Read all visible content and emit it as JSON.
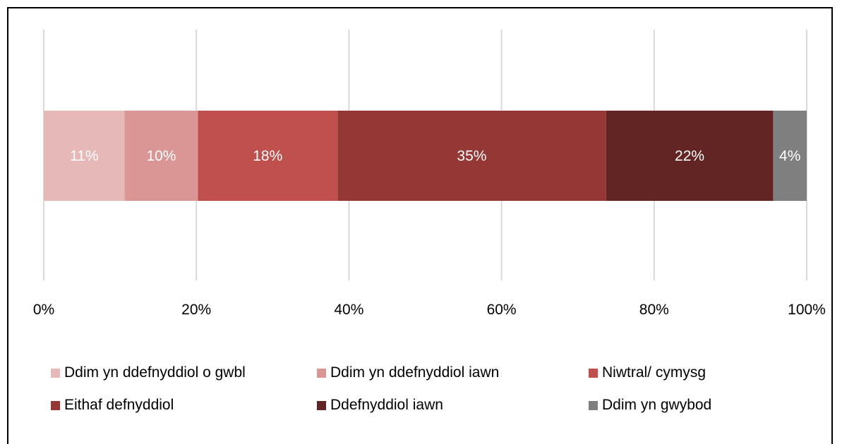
{
  "chart_data": {
    "type": "bar",
    "orientation": "horizontal",
    "stacked": true,
    "title": "",
    "xlabel": "",
    "ylabel": "",
    "xlim": [
      0,
      100
    ],
    "x_ticks": [
      "0%",
      "20%",
      "40%",
      "60%",
      "80%",
      "100%"
    ],
    "grid": true,
    "legend_position": "bottom",
    "series": [
      {
        "name": "Ddim yn ddefnyddiol o gwbl",
        "value": 10.6,
        "label": "11%",
        "color": "#E6B9B8"
      },
      {
        "name": "Ddim yn ddefnyddiol iawn",
        "value": 9.6,
        "label": "10%",
        "color": "#D99694"
      },
      {
        "name": "Niwtral/ cymysg",
        "value": 18.3,
        "label": "18%",
        "color": "#C0504D"
      },
      {
        "name": "Eithaf defnyddiol",
        "value": 35.2,
        "label": "35%",
        "color": "#953735"
      },
      {
        "name": "Ddefnyddiol iawn",
        "value": 21.9,
        "label": "22%",
        "color": "#632523"
      },
      {
        "name": "Ddim yn gwybod",
        "value": 4.4,
        "label": "4%",
        "color": "#7F7F7F"
      }
    ]
  }
}
